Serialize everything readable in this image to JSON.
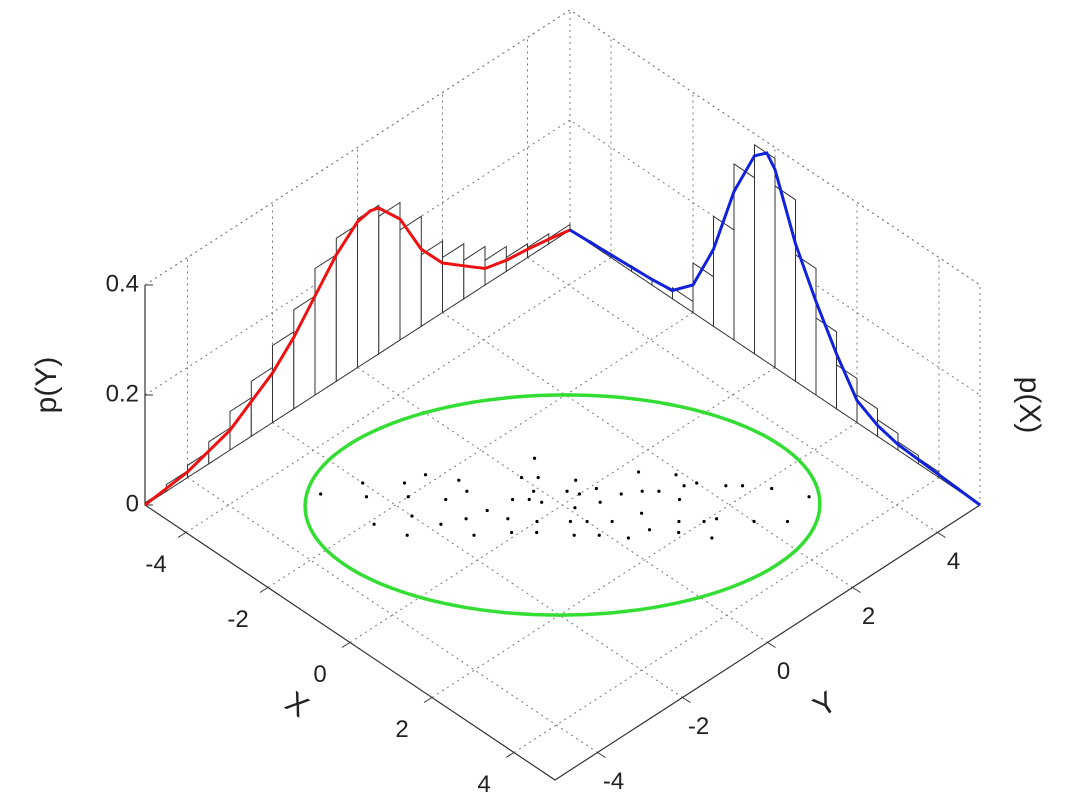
{
  "chart_data": {
    "type": "scatter",
    "x_label": "X",
    "y_label": "Y",
    "z_label_left": "p(Y)",
    "z_label_right": "p(X)",
    "xlim": [
      -5,
      5
    ],
    "ylim": [
      -5,
      5
    ],
    "zlim": [
      0,
      0.4
    ],
    "xticks": [
      -4,
      -2,
      0,
      2,
      4
    ],
    "yticks": [
      -4,
      -2,
      0,
      2,
      4
    ],
    "zticks": [
      0,
      0.2,
      0.4
    ],
    "grid": true,
    "color": "#000000",
    "points": {
      "x": [
        0.2,
        -0.5,
        1.1,
        -1.4,
        0.7,
        2.1,
        -2.0,
        0.0,
        -0.8,
        1.6,
        -1.1,
        0.4,
        2.6,
        -2.5,
        0.9,
        -0.3,
        1.3,
        -1.7,
        0.5,
        -0.1,
        1.9,
        -0.9,
        0.1,
        3.0,
        -2.8,
        1.0,
        -0.6,
        2.2,
        -1.3,
        0.3,
        -0.4,
        1.5,
        -2.2,
        0.8,
        -1.0,
        2.4,
        -1.9,
        0.6,
        -0.2,
        1.2,
        -1.5,
        0.0,
        2.8,
        -3.1,
        1.7,
        -0.7,
        0.2,
        -1.2,
        1.4,
        0.9,
        -2.3,
        1.8,
        -0.5,
        0.4,
        2.0,
        -1.6,
        0.7,
        -0.3,
        1.1,
        -0.8
      ],
      "y": [
        0.1,
        -0.3,
        0.8,
        -0.9,
        1.2,
        1.6,
        -1.7,
        -0.6,
        0.2,
        2.3,
        -1.8,
        -0.2,
        2.0,
        -2.2,
        0.3,
        0.6,
        1.5,
        -0.8,
        0.9,
        -1.1,
        0.9,
        -1.4,
        0.7,
        2.4,
        -2.0,
        -0.1,
        -0.1,
        2.8,
        -2.4,
        1.5,
        -0.9,
        0.6,
        -1.1,
        1.9,
        0.0,
        1.2,
        -2.6,
        0.0,
        0.3,
        2.0,
        -1.3,
        0.4,
        3.1,
        -2.7,
        1.1,
        -0.5,
        -0.8,
        0.5,
        0.2,
        1.4,
        -1.5,
        2.5,
        -1.6,
        0.5,
        1.4,
        -2.0,
        -0.4,
        -0.2,
        1.8,
        -1.0
      ]
    },
    "ellipse": {
      "center": [
        0,
        0
      ],
      "semi_axes": [
        4.36,
        2.83
      ],
      "angle": 45,
      "color": "#33dd33"
    },
    "marginal_y": {
      "color": "#ee1111",
      "bins": [
        -5,
        -4.5,
        -4,
        -3.5,
        -3,
        -2.5,
        -2,
        -1.5,
        -1,
        -0.5,
        0,
        0.5,
        1,
        1.5,
        2,
        2.5,
        3,
        3.5,
        4,
        4.5,
        5
      ],
      "counts": [
        0.004,
        0.012,
        0.022,
        0.04,
        0.07,
        0.1,
        0.14,
        0.18,
        0.23,
        0.26,
        0.27,
        0.25,
        0.2,
        0.13,
        0.1,
        0.07,
        0.045,
        0.025,
        0.018,
        0.01
      ],
      "curve_x": [
        -5,
        -4,
        -3,
        -2,
        -1.5,
        -1,
        -0.5,
        0,
        0.3,
        0.5,
        1,
        1.5,
        2,
        2.5,
        3,
        3.5,
        4,
        4.5,
        5
      ],
      "curve": [
        0,
        0.01,
        0.036,
        0.09,
        0.13,
        0.18,
        0.23,
        0.265,
        0.27,
        0.265,
        0.22,
        0.14,
        0.09,
        0.06,
        0.03,
        0.02,
        0.015,
        0.008,
        0
      ]
    },
    "marginal_x": {
      "color": "#1122dd",
      "bins": [
        -5,
        -4.5,
        -4,
        -3.5,
        -3,
        -2.5,
        -2,
        -1.5,
        -1,
        -0.5,
        0,
        0.5,
        1,
        1.5,
        2,
        2.5,
        3,
        3.5,
        4,
        4.5,
        5
      ],
      "counts": [
        0.002,
        0.005,
        0.007,
        0.01,
        0.012,
        0.02,
        0.09,
        0.2,
        0.32,
        0.38,
        0.33,
        0.23,
        0.14,
        0.08,
        0.05,
        0.03,
        0.015,
        0.01,
        0.005,
        0.002
      ],
      "curve_x": [
        -5,
        -4,
        -3,
        -2.5,
        -2,
        -1.5,
        -1,
        -0.5,
        -0.2,
        0,
        0.5,
        1,
        1.5,
        2,
        2.5,
        3,
        4,
        5
      ],
      "curve": [
        0,
        0.005,
        0.01,
        0.015,
        0.05,
        0.14,
        0.27,
        0.36,
        0.38,
        0.36,
        0.25,
        0.17,
        0.1,
        0.04,
        0.02,
        0.01,
        0.005,
        0
      ]
    }
  }
}
